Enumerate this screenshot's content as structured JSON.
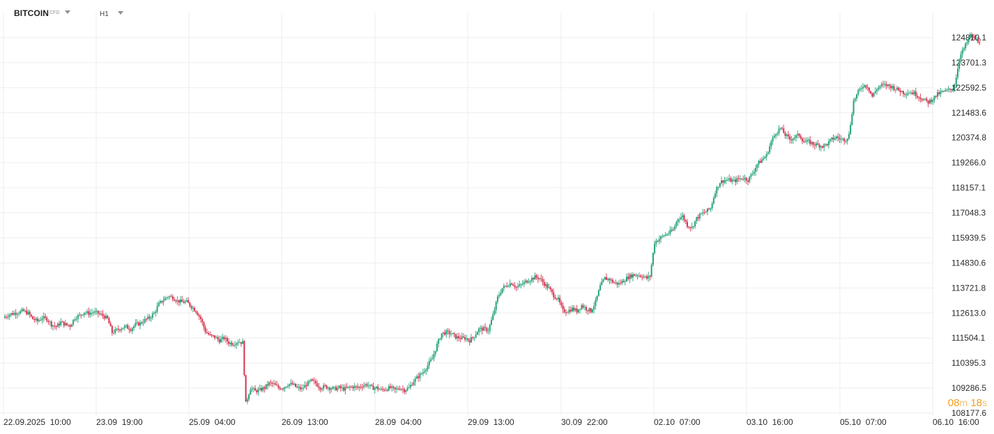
{
  "header": {
    "symbol": "BITCOIN",
    "symbol_type": "CFD",
    "timeframe": "H1"
  },
  "countdown": {
    "minutes": "08",
    "minutes_unit": "m",
    "seconds": "18",
    "seconds_unit": "s"
  },
  "colors": {
    "up": "#26a17b",
    "down": "#d5334e",
    "grid": "#eeeeee",
    "countdown": "#f0a020"
  },
  "chart_data": {
    "type": "candlestick",
    "timeframe": "H1",
    "ylim": [
      108177.6,
      125919.0
    ],
    "price_axis": [
      "124810.1",
      "123701.3",
      "122592.5",
      "121483.6",
      "120374.8",
      "119266.0",
      "118157.1",
      "117048.3",
      "115939.5",
      "114830.6",
      "113721.8",
      "112613.0",
      "111504.1",
      "110395.3",
      "109286.5",
      "108177.6"
    ],
    "time_axis": [
      "22.09.2025  10:00",
      "23.09  19:00",
      "25.09  04:00",
      "26.09  13:00",
      "28.09  04:00",
      "29.09  13:00",
      "30.09  22:00",
      "02.10  07:00",
      "03.10  16:00",
      "05.10  07:00",
      "06.10  16:00"
    ],
    "close_path": [
      [
        0,
        112450
      ],
      [
        3,
        112550
      ],
      [
        6,
        112600
      ],
      [
        9,
        112650
      ],
      [
        12,
        112700
      ],
      [
        15,
        112600
      ],
      [
        18,
        112350
      ],
      [
        21,
        112250
      ],
      [
        24,
        112400
      ],
      [
        27,
        112350
      ],
      [
        30,
        112100
      ],
      [
        33,
        112000
      ],
      [
        36,
        112200
      ],
      [
        39,
        112100
      ],
      [
        42,
        112050
      ],
      [
        45,
        112400
      ],
      [
        48,
        112500
      ],
      [
        51,
        112650
      ],
      [
        54,
        112600
      ],
      [
        57,
        112650
      ],
      [
        60,
        112600
      ],
      [
        63,
        112500
      ],
      [
        66,
        112350
      ],
      [
        69,
        111750
      ],
      [
        72,
        111850
      ],
      [
        75,
        111950
      ],
      [
        78,
        112000
      ],
      [
        81,
        111900
      ],
      [
        84,
        112100
      ],
      [
        87,
        112150
      ],
      [
        90,
        112300
      ],
      [
        93,
        112400
      ],
      [
        96,
        112600
      ],
      [
        99,
        113000
      ],
      [
        102,
        113200
      ],
      [
        105,
        113350
      ],
      [
        108,
        113300
      ],
      [
        111,
        113150
      ],
      [
        114,
        113100
      ],
      [
        117,
        113100
      ],
      [
        120,
        112900
      ],
      [
        123,
        112700
      ],
      [
        126,
        112350
      ],
      [
        129,
        111800
      ],
      [
        132,
        111600
      ],
      [
        135,
        111550
      ],
      [
        138,
        111400
      ],
      [
        141,
        111500
      ],
      [
        144,
        111300
      ],
      [
        147,
        111250
      ],
      [
        150,
        111350
      ],
      [
        153,
        111300
      ],
      [
        155,
        108600
      ],
      [
        158,
        109300
      ],
      [
        161,
        109150
      ],
      [
        164,
        109200
      ],
      [
        167,
        109300
      ],
      [
        170,
        109500
      ],
      [
        173,
        109450
      ],
      [
        176,
        109300
      ],
      [
        179,
        109300
      ],
      [
        182,
        109450
      ],
      [
        185,
        109450
      ],
      [
        188,
        109300
      ],
      [
        191,
        109250
      ],
      [
        194,
        109450
      ],
      [
        197,
        109600
      ],
      [
        200,
        109500
      ],
      [
        203,
        109300
      ],
      [
        206,
        109350
      ],
      [
        209,
        109300
      ],
      [
        212,
        109250
      ],
      [
        215,
        109300
      ],
      [
        218,
        109250
      ],
      [
        221,
        109300
      ],
      [
        224,
        109350
      ],
      [
        227,
        109300
      ],
      [
        230,
        109400
      ],
      [
        233,
        109450
      ],
      [
        236,
        109300
      ],
      [
        239,
        109300
      ],
      [
        242,
        109200
      ],
      [
        245,
        109250
      ],
      [
        248,
        109300
      ],
      [
        251,
        109200
      ],
      [
        254,
        109300
      ],
      [
        257,
        109200
      ],
      [
        260,
        109300
      ],
      [
        263,
        109600
      ],
      [
        266,
        109800
      ],
      [
        269,
        110000
      ],
      [
        272,
        110300
      ],
      [
        275,
        110600
      ],
      [
        278,
        111200
      ],
      [
        281,
        111700
      ],
      [
        284,
        111750
      ],
      [
        287,
        111700
      ],
      [
        290,
        111550
      ],
      [
        293,
        111500
      ],
      [
        296,
        111500
      ],
      [
        299,
        111400
      ],
      [
        302,
        111600
      ],
      [
        305,
        111900
      ],
      [
        308,
        111900
      ],
      [
        311,
        111850
      ],
      [
        314,
        112500
      ],
      [
        317,
        113300
      ],
      [
        320,
        113700
      ],
      [
        323,
        113850
      ],
      [
        326,
        113950
      ],
      [
        329,
        113750
      ],
      [
        332,
        113850
      ],
      [
        335,
        114000
      ],
      [
        338,
        114100
      ],
      [
        341,
        114200
      ],
      [
        344,
        114150
      ],
      [
        347,
        113900
      ],
      [
        350,
        113700
      ],
      [
        353,
        113400
      ],
      [
        356,
        113200
      ],
      [
        359,
        112700
      ],
      [
        362,
        112700
      ],
      [
        365,
        112800
      ],
      [
        368,
        112700
      ],
      [
        371,
        112950
      ],
      [
        374,
        112800
      ],
      [
        377,
        112700
      ],
      [
        380,
        113100
      ],
      [
        383,
        113800
      ],
      [
        386,
        114150
      ],
      [
        389,
        114100
      ],
      [
        392,
        113950
      ],
      [
        395,
        113900
      ],
      [
        398,
        114050
      ],
      [
        401,
        114200
      ],
      [
        404,
        114300
      ],
      [
        407,
        114300
      ],
      [
        410,
        114250
      ],
      [
        413,
        114150
      ],
      [
        415,
        114250
      ],
      [
        418,
        115750
      ],
      [
        421,
        115900
      ],
      [
        424,
        116050
      ],
      [
        427,
        116150
      ],
      [
        430,
        116300
      ],
      [
        433,
        116800
      ],
      [
        436,
        116900
      ],
      [
        439,
        116500
      ],
      [
        442,
        116400
      ],
      [
        445,
        116800
      ],
      [
        448,
        117000
      ],
      [
        451,
        117100
      ],
      [
        454,
        117250
      ],
      [
        457,
        118000
      ],
      [
        460,
        118400
      ],
      [
        463,
        118500
      ],
      [
        466,
        118500
      ],
      [
        469,
        118450
      ],
      [
        472,
        118550
      ],
      [
        475,
        118600
      ],
      [
        478,
        118500
      ],
      [
        481,
        118800
      ],
      [
        484,
        119200
      ],
      [
        487,
        119400
      ],
      [
        490,
        119600
      ],
      [
        493,
        120200
      ],
      [
        496,
        120600
      ],
      [
        499,
        120800
      ],
      [
        502,
        120500
      ],
      [
        505,
        120300
      ],
      [
        508,
        120400
      ],
      [
        511,
        120500
      ],
      [
        514,
        120200
      ],
      [
        517,
        120200
      ],
      [
        520,
        120100
      ],
      [
        523,
        120050
      ],
      [
        526,
        120000
      ],
      [
        529,
        120100
      ],
      [
        532,
        120300
      ],
      [
        535,
        120400
      ],
      [
        538,
        120300
      ],
      [
        541,
        120300
      ],
      [
        543,
        120500
      ],
      [
        546,
        122000
      ],
      [
        549,
        122400
      ],
      [
        552,
        122700
      ],
      [
        555,
        122650
      ],
      [
        558,
        122200
      ],
      [
        561,
        122550
      ],
      [
        564,
        122700
      ],
      [
        567,
        122700
      ],
      [
        570,
        122650
      ],
      [
        573,
        122550
      ],
      [
        576,
        122450
      ],
      [
        579,
        122350
      ],
      [
        582,
        122400
      ],
      [
        585,
        122350
      ],
      [
        588,
        122200
      ],
      [
        591,
        122050
      ],
      [
        594,
        121950
      ],
      [
        597,
        122100
      ],
      [
        600,
        122300
      ],
      [
        603,
        122400
      ],
      [
        606,
        122450
      ],
      [
        609,
        122550
      ],
      [
        611,
        122650
      ],
      [
        614,
        123900
      ],
      [
        616,
        124200
      ],
      [
        619,
        124600
      ],
      [
        621,
        124900
      ],
      [
        624,
        124750
      ],
      [
        627,
        124650
      ]
    ]
  }
}
